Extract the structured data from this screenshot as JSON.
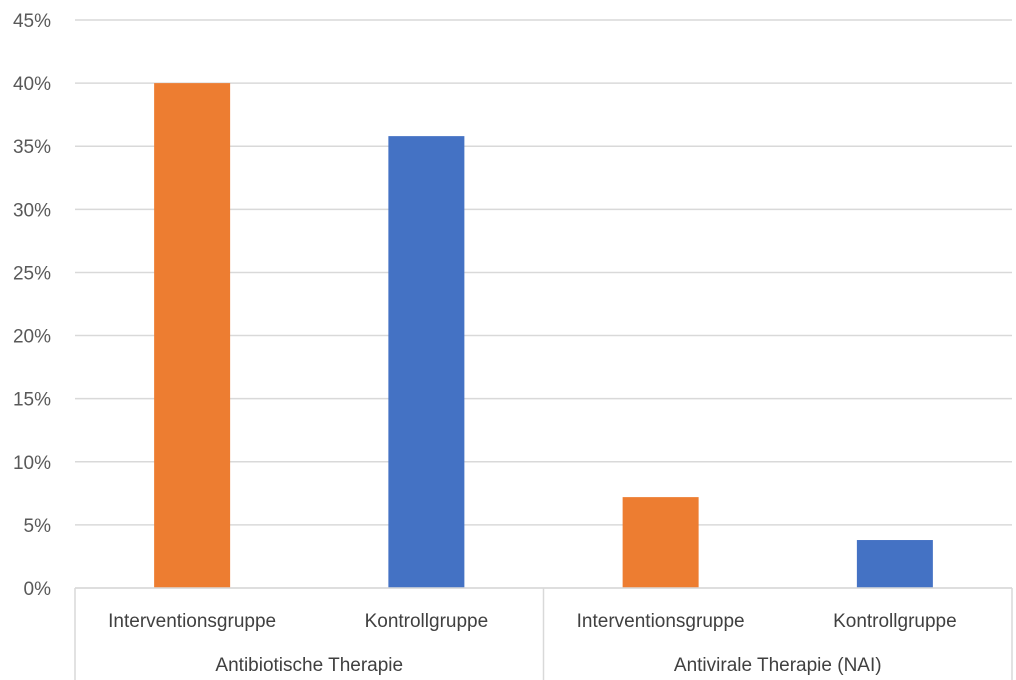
{
  "chart_data": {
    "type": "bar",
    "title": "",
    "xlabel": "",
    "ylabel": "",
    "ylim": [
      0,
      45
    ],
    "y_ticks": [
      "0%",
      "5%",
      "10%",
      "15%",
      "20%",
      "25%",
      "30%",
      "35%",
      "40%",
      "45%"
    ],
    "grid": true,
    "legend": "none",
    "groups": [
      {
        "label": "Antibiotische Therapie",
        "bars": [
          {
            "category": "Interventionsgruppe",
            "value": 40.0,
            "color": "#ED7D31"
          },
          {
            "category": "Kontrollgruppe",
            "value": 35.8,
            "color": "#4472C4"
          }
        ]
      },
      {
        "label": "Antivirale Therapie (NAI)",
        "bars": [
          {
            "category": "Interventionsgruppe",
            "value": 7.2,
            "color": "#ED7D31"
          },
          {
            "category": "Kontrollgruppe",
            "value": 3.8,
            "color": "#4472C4"
          }
        ]
      }
    ]
  }
}
